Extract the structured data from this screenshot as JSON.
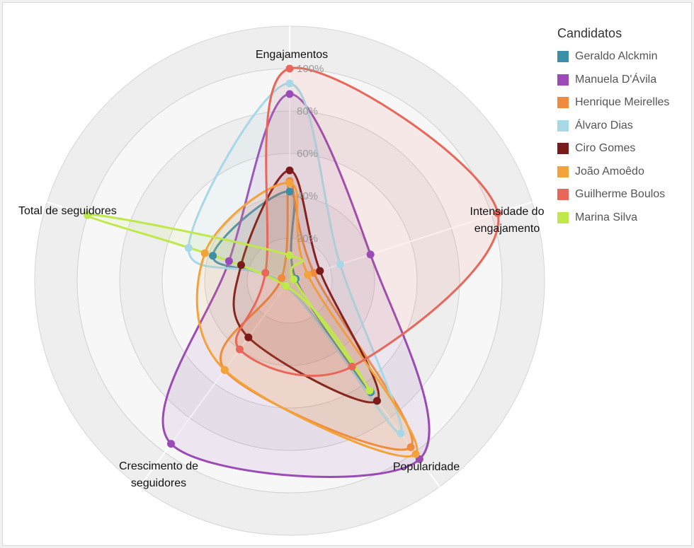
{
  "chart_data": {
    "type": "radar",
    "axes": [
      "Engajamentos",
      "Intensidade do engajamento",
      "Popularidade",
      "Crescimento de seguidores",
      "Total de seguidores"
    ],
    "ticks": [
      "20%",
      "40%",
      "60%",
      "80%",
      "100%"
    ],
    "rmax": 120,
    "legend_title": "Candidatos",
    "legend_position": "right",
    "series": [
      {
        "name": "Geraldo Alckmin",
        "color": "#3d8fa8",
        "values": [
          42,
          3,
          65,
          3,
          38
        ]
      },
      {
        "name": "Manuela D'Ávila",
        "color": "#9a4bb5",
        "values": [
          88,
          40,
          104,
          95,
          30
        ]
      },
      {
        "name": "Henrique Meirelles",
        "color": "#f08a3e",
        "values": [
          47,
          12,
          97,
          52,
          4
        ]
      },
      {
        "name": "Álvaro Dias",
        "color": "#a8d8e8",
        "values": [
          93,
          25,
          89,
          3,
          50
        ]
      },
      {
        "name": "Ciro Gomes",
        "color": "#7a1a1a",
        "values": [
          52,
          15,
          70,
          33,
          24
        ]
      },
      {
        "name": "João Amoêdo",
        "color": "#f4a23a",
        "values": [
          46,
          9,
          101,
          52,
          42
        ]
      },
      {
        "name": "Guilherme Boulos",
        "color": "#e8675a",
        "values": [
          100,
          103,
          50,
          40,
          12
        ]
      },
      {
        "name": "Marina Silva",
        "color": "#bfe84a",
        "values": [
          12,
          2,
          64,
          3,
          100
        ]
      }
    ]
  }
}
